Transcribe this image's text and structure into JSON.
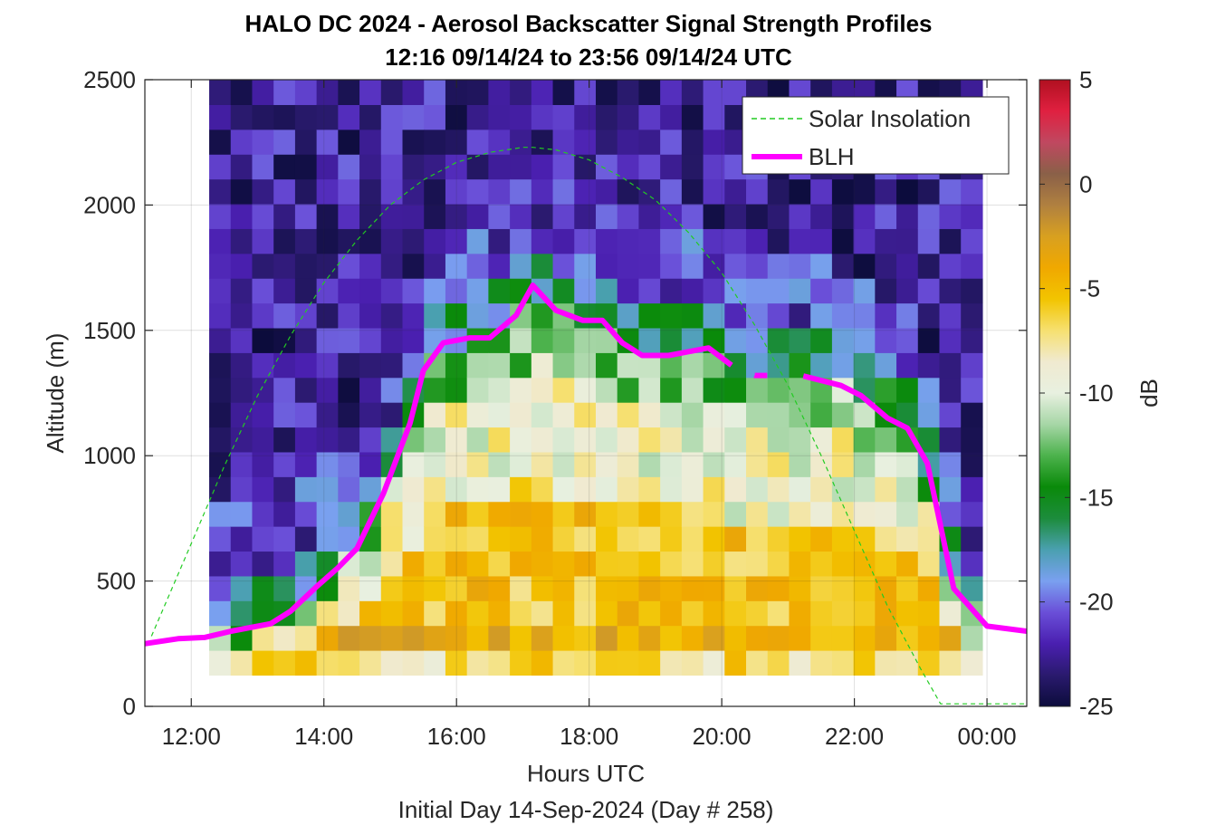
{
  "chart_data": {
    "type": "heatmap",
    "title": "HALO DC 2024 - Aerosol Backscatter Signal Strength Profiles",
    "subtitle": "12:16 09/14/24 to 23:56 09/14/24  UTC",
    "xlabel": "Hours UTC",
    "ylabel": "Altitude (m)",
    "note": "Initial Day 14-Sep-2024 (Day # 258)",
    "xlim": [
      11.3,
      24.6
    ],
    "ylim": [
      0,
      2500
    ],
    "x_ticks": [
      12,
      14,
      16,
      18,
      20,
      22,
      24
    ],
    "x_tick_labels": [
      "12:00",
      "14:00",
      "16:00",
      "18:00",
      "20:00",
      "22:00",
      "00:00"
    ],
    "y_ticks": [
      0,
      500,
      1000,
      1500,
      2000,
      2500
    ],
    "y_tick_labels": [
      "0",
      "500",
      "1000",
      "1500",
      "2000",
      "2500"
    ],
    "grid": true,
    "legend_position": "top-right",
    "colorbar": {
      "label": "dB",
      "min": -25,
      "max": 5,
      "ticks": [
        5,
        0,
        -5,
        -10,
        -15,
        -20,
        -25
      ],
      "tick_labels": [
        "5",
        "0",
        "-5",
        "-10",
        "-15",
        "-20",
        "-25"
      ],
      "colors": [
        "#0c0c3c",
        "#2a1a6e",
        "#4a1fb0",
        "#6a4fd8",
        "#7aa0f0",
        "#4aa0b0",
        "#1c8c3c",
        "#0a8a0a",
        "#4cb24c",
        "#a6d6a6",
        "#e8f0e0",
        "#f0ead0",
        "#f6e070",
        "#f2c400",
        "#f0a800",
        "#d8a020",
        "#b08040",
        "#8a6048",
        "#c04860",
        "#e02040",
        "#b01020"
      ]
    },
    "heatmap": {
      "x_start": 12.27,
      "x_end": 23.93,
      "y_top": 2500,
      "y_bottom": 125,
      "note": "Backscatter signal strength (dB) by time and altitude"
    },
    "series": [
      {
        "name": "Solar Insolation",
        "style": "dashed",
        "color": "#22cc22",
        "x": [
          11.4,
          12.0,
          12.5,
          13.0,
          13.5,
          14.0,
          14.5,
          15.0,
          15.5,
          16.0,
          16.5,
          17.0,
          17.15,
          17.5,
          18.0,
          18.5,
          19.0,
          19.5,
          20.0,
          20.5,
          21.0,
          21.5,
          22.0,
          22.5,
          23.0,
          23.3,
          23.6,
          24.0,
          24.6
        ],
        "y": [
          280,
          650,
          960,
          1240,
          1480,
          1690,
          1860,
          2000,
          2100,
          2170,
          2210,
          2230,
          2230,
          2220,
          2180,
          2110,
          2020,
          1890,
          1730,
          1520,
          1280,
          1000,
          700,
          400,
          150,
          10,
          10,
          10,
          10
        ]
      },
      {
        "name": "BLH",
        "style": "solid",
        "color": "#ff00ff",
        "x": [
          11.3,
          11.8,
          12.2,
          12.6,
          13.0,
          13.2,
          13.5,
          13.9,
          14.2,
          14.5,
          14.9,
          15.3,
          15.5,
          15.8,
          16.2,
          16.5,
          16.9,
          17.15,
          17.5,
          17.9,
          18.2,
          18.5,
          18.8,
          19.2,
          19.8,
          20.2,
          20.5,
          21.2,
          21.8,
          22.1,
          22.5,
          22.8,
          23.1,
          23.5,
          24.0,
          24.6
        ],
        "y": [
          250,
          270,
          275,
          300,
          320,
          330,
          380,
          480,
          550,
          630,
          850,
          1130,
          1340,
          1450,
          1470,
          1470,
          1560,
          1680,
          1580,
          1540,
          1540,
          1450,
          1400,
          1400,
          1430,
          1350,
          1320,
          1320,
          1280,
          1240,
          1150,
          1110,
          970,
          470,
          320,
          300
        ]
      }
    ],
    "legend": [
      "Solar Insolation",
      "BLH"
    ]
  }
}
